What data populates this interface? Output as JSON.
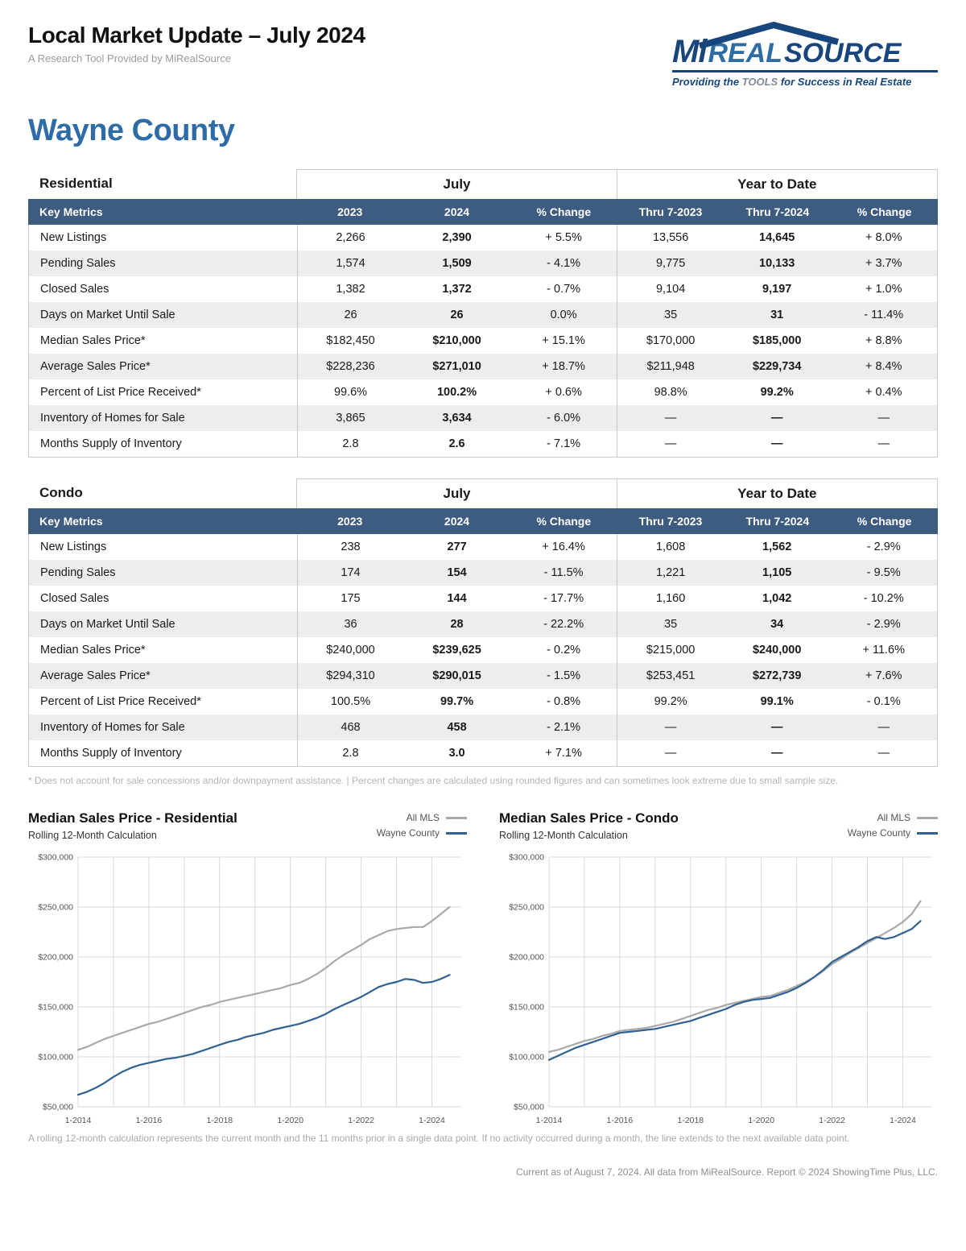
{
  "header": {
    "title": "Local Market Update – July 2024",
    "subtitle": "A Research Tool Provided by MiRealSource",
    "logo": {
      "mi": "Mi",
      "real": "REAL",
      "source": "SOURCE",
      "tagline_pre": "Providing the ",
      "tagline_bold": "TOOLS",
      "tagline_post": " for Success in Real Estate"
    },
    "region": "Wayne County"
  },
  "tables": [
    {
      "section": "Residential",
      "group1": "July",
      "group2": "Year to Date",
      "columns": [
        "Key Metrics",
        "2023",
        "2024",
        "% Change",
        "Thru 7-2023",
        "Thru 7-2024",
        "% Change"
      ],
      "rows": [
        {
          "metric": "New Listings",
          "values": [
            "2,266",
            "2,390",
            "+ 5.5%",
            "13,556",
            "14,645",
            "+ 8.0%"
          ]
        },
        {
          "metric": "Pending Sales",
          "values": [
            "1,574",
            "1,509",
            "- 4.1%",
            "9,775",
            "10,133",
            "+ 3.7%"
          ]
        },
        {
          "metric": "Closed Sales",
          "values": [
            "1,382",
            "1,372",
            "- 0.7%",
            "9,104",
            "9,197",
            "+ 1.0%"
          ]
        },
        {
          "metric": "Days on Market Until Sale",
          "values": [
            "26",
            "26",
            "0.0%",
            "35",
            "31",
            "- 11.4%"
          ]
        },
        {
          "metric": "Median Sales Price*",
          "values": [
            "$182,450",
            "$210,000",
            "+ 15.1%",
            "$170,000",
            "$185,000",
            "+ 8.8%"
          ]
        },
        {
          "metric": "Average Sales Price*",
          "values": [
            "$228,236",
            "$271,010",
            "+ 18.7%",
            "$211,948",
            "$229,734",
            "+ 8.4%"
          ]
        },
        {
          "metric": "Percent of List Price Received*",
          "values": [
            "99.6%",
            "100.2%",
            "+ 0.6%",
            "98.8%",
            "99.2%",
            "+ 0.4%"
          ]
        },
        {
          "metric": "Inventory of Homes for Sale",
          "values": [
            "3,865",
            "3,634",
            "- 6.0%",
            "—",
            "—",
            "—"
          ]
        },
        {
          "metric": "Months Supply of Inventory",
          "values": [
            "2.8",
            "2.6",
            "- 7.1%",
            "—",
            "—",
            "—"
          ]
        }
      ]
    },
    {
      "section": "Condo",
      "group1": "July",
      "group2": "Year to Date",
      "columns": [
        "Key Metrics",
        "2023",
        "2024",
        "% Change",
        "Thru 7-2023",
        "Thru 7-2024",
        "% Change"
      ],
      "rows": [
        {
          "metric": "New Listings",
          "values": [
            "238",
            "277",
            "+ 16.4%",
            "1,608",
            "1,562",
            "- 2.9%"
          ]
        },
        {
          "metric": "Pending Sales",
          "values": [
            "174",
            "154",
            "- 11.5%",
            "1,221",
            "1,105",
            "- 9.5%"
          ]
        },
        {
          "metric": "Closed Sales",
          "values": [
            "175",
            "144",
            "- 17.7%",
            "1,160",
            "1,042",
            "- 10.2%"
          ]
        },
        {
          "metric": "Days on Market Until Sale",
          "values": [
            "36",
            "28",
            "- 22.2%",
            "35",
            "34",
            "- 2.9%"
          ]
        },
        {
          "metric": "Median Sales Price*",
          "values": [
            "$240,000",
            "$239,625",
            "- 0.2%",
            "$215,000",
            "$240,000",
            "+ 11.6%"
          ]
        },
        {
          "metric": "Average Sales Price*",
          "values": [
            "$294,310",
            "$290,015",
            "- 1.5%",
            "$253,451",
            "$272,739",
            "+ 7.6%"
          ]
        },
        {
          "metric": "Percent of List Price Received*",
          "values": [
            "100.5%",
            "99.7%",
            "- 0.8%",
            "99.2%",
            "99.1%",
            "- 0.1%"
          ]
        },
        {
          "metric": "Inventory of Homes for Sale",
          "values": [
            "468",
            "458",
            "- 2.1%",
            "—",
            "—",
            "—"
          ]
        },
        {
          "metric": "Months Supply of Inventory",
          "values": [
            "2.8",
            "3.0",
            "+ 7.1%",
            "—",
            "—",
            "—"
          ]
        }
      ]
    }
  ],
  "footnote": "* Does not account for sale concessions and/or downpayment assistance. | Percent changes are calculated using rounded figures and can sometimes look extreme due to small sample size.",
  "chart_data": [
    {
      "type": "line",
      "title": "Median Sales Price - Residential",
      "subtitle": "Rolling 12-Month Calculation",
      "ylabel": "",
      "xlabel": "",
      "ylim": [
        50000,
        300000
      ],
      "xlim": [
        2014,
        2024.83
      ],
      "grid": true,
      "legend_position": "top-right",
      "y_ticks": [
        50000,
        100000,
        150000,
        200000,
        250000,
        300000
      ],
      "x_gridline_years": [
        2014,
        2015,
        2016,
        2017,
        2018,
        2019,
        2020,
        2021,
        2022,
        2023,
        2024
      ],
      "x_tick_labels": [
        {
          "x": 2014,
          "label": "1-2014"
        },
        {
          "x": 2016,
          "label": "1-2016"
        },
        {
          "x": 2018,
          "label": "1-2018"
        },
        {
          "x": 2020,
          "label": "1-2020"
        },
        {
          "x": 2022,
          "label": "1-2022"
        },
        {
          "x": 2024,
          "label": "1-2024"
        }
      ],
      "series": [
        {
          "name": "All MLS",
          "color": "#a9a9a9",
          "x_start": 2014,
          "x_step": 0.25,
          "values": [
            107000,
            110000,
            114000,
            118000,
            121000,
            124000,
            127000,
            130000,
            133000,
            135000,
            138000,
            141000,
            144000,
            147000,
            150000,
            152000,
            155000,
            157000,
            159000,
            161000,
            163000,
            165000,
            167000,
            169000,
            172000,
            174000,
            178000,
            183000,
            189000,
            196000,
            202000,
            207000,
            212000,
            218000,
            222000,
            226000,
            228000,
            229000,
            230000,
            230000,
            236000,
            243000,
            250000
          ]
        },
        {
          "name": "Wayne County",
          "color": "#2f6191",
          "x_start": 2014,
          "x_step": 0.25,
          "values": [
            62000,
            65000,
            69000,
            74000,
            80000,
            85000,
            89000,
            92000,
            94000,
            96000,
            98000,
            99000,
            101000,
            103000,
            106000,
            109000,
            112000,
            115000,
            117000,
            120000,
            122000,
            124000,
            127000,
            129000,
            131000,
            133000,
            136000,
            139000,
            143000,
            148000,
            152000,
            156000,
            160000,
            165000,
            170000,
            173000,
            175000,
            178000,
            177000,
            174000,
            175000,
            178000,
            182000
          ]
        }
      ]
    },
    {
      "type": "line",
      "title": "Median Sales Price - Condo",
      "subtitle": "Rolling 12-Month Calculation",
      "ylabel": "",
      "xlabel": "",
      "ylim": [
        50000,
        300000
      ],
      "xlim": [
        2014,
        2024.83
      ],
      "grid": true,
      "legend_position": "top-right",
      "y_ticks": [
        50000,
        100000,
        150000,
        200000,
        250000,
        300000
      ],
      "x_gridline_years": [
        2014,
        2015,
        2016,
        2017,
        2018,
        2019,
        2020,
        2021,
        2022,
        2023,
        2024
      ],
      "x_tick_labels": [
        {
          "x": 2014,
          "label": "1-2014"
        },
        {
          "x": 2016,
          "label": "1-2016"
        },
        {
          "x": 2018,
          "label": "1-2018"
        },
        {
          "x": 2020,
          "label": "1-2020"
        },
        {
          "x": 2022,
          "label": "1-2022"
        },
        {
          "x": 2024,
          "label": "1-2024"
        }
      ],
      "series": [
        {
          "name": "All MLS",
          "color": "#a9a9a9",
          "x_start": 2014,
          "x_step": 0.25,
          "values": [
            105000,
            107000,
            110000,
            113000,
            116000,
            118000,
            121000,
            123000,
            126000,
            127000,
            128000,
            129000,
            131000,
            133000,
            135000,
            138000,
            141000,
            144000,
            147000,
            149000,
            152000,
            154000,
            156000,
            158000,
            160000,
            161000,
            164000,
            167000,
            171000,
            175000,
            180000,
            186000,
            193000,
            198000,
            204000,
            209000,
            214000,
            219000,
            224000,
            229000,
            235000,
            243000,
            256000
          ]
        },
        {
          "name": "Wayne County",
          "color": "#2f6191",
          "x_start": 2014,
          "x_step": 0.25,
          "values": [
            97000,
            101000,
            105000,
            109000,
            112000,
            115000,
            118000,
            121000,
            124000,
            125000,
            126000,
            127000,
            128000,
            130000,
            132000,
            134000,
            136000,
            139000,
            142000,
            145000,
            148000,
            152000,
            155000,
            157000,
            158000,
            159000,
            162000,
            165000,
            169000,
            174000,
            180000,
            187000,
            195000,
            200000,
            205000,
            210000,
            216000,
            220000,
            218000,
            220000,
            224000,
            228000,
            236000
          ]
        }
      ]
    }
  ],
  "chart_footnote": "A rolling 12-month calculation represents the current month and the 11 months prior in a single data point. If no activity occurred during a month, the line extends to the next available data point.",
  "footer": "Current as of August 7, 2024. All data from MiRealSource. Report © 2024 ShowingTime Plus, LLC.",
  "colors": {
    "table_header_blue": "#3e5c80",
    "heading_blue": "#2e6ca8",
    "logo_navy": "#17457c",
    "logo_real_blue": "#2e6da4",
    "all_mls_line": "#a9a9a9",
    "wayne_county_line": "#2f6191",
    "alt_row": "#ededed",
    "grid_line": "#d9d9d9"
  }
}
